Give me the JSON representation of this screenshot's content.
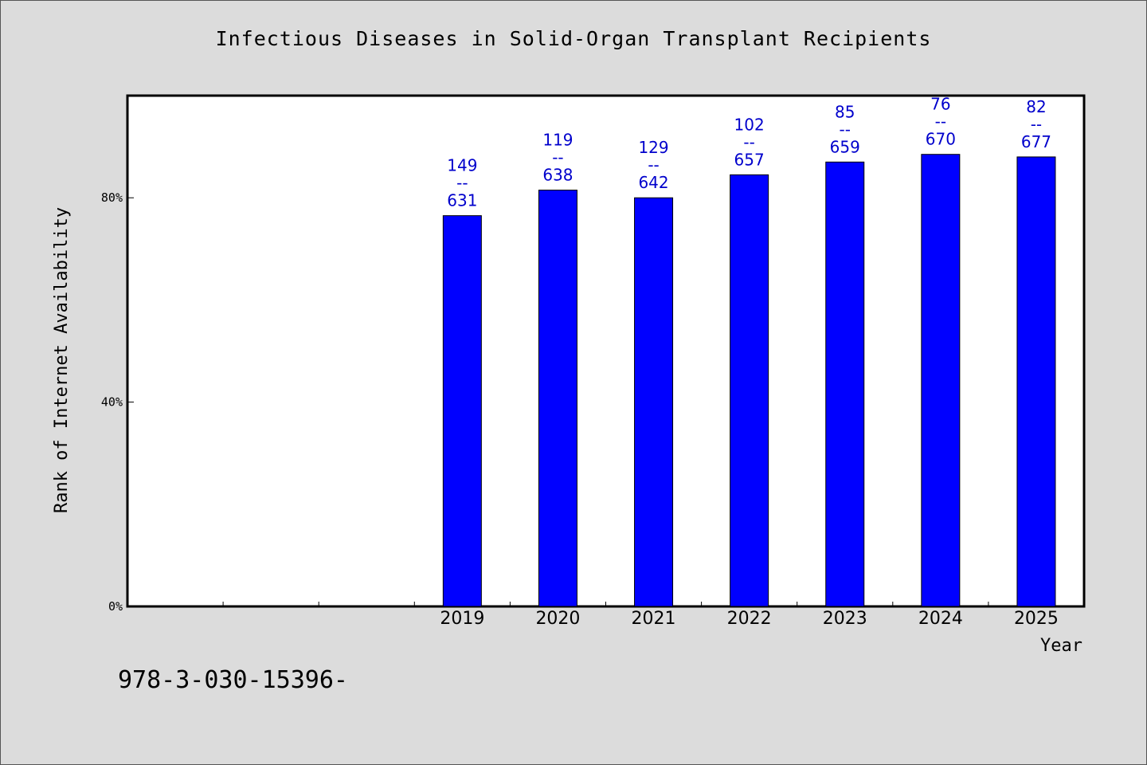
{
  "chart_data": {
    "type": "bar",
    "title": "Infectious Diseases in Solid-Organ Transplant Recipients",
    "xlabel": "Year",
    "ylabel": "Rank of Internet Availability",
    "categories": [
      "",
      "",
      "",
      "2019",
      "2020",
      "2021",
      "2022",
      "2023",
      "2024",
      "2025"
    ],
    "values": [
      null,
      null,
      null,
      76.5,
      81.5,
      80.0,
      84.5,
      87.0,
      88.5,
      88.0
    ],
    "data_labels": [
      null,
      null,
      null,
      [
        "149",
        "--",
        "631"
      ],
      [
        "119",
        "--",
        "638"
      ],
      [
        "129",
        "--",
        "642"
      ],
      [
        "102",
        "--",
        "657"
      ],
      [
        "85",
        "--",
        "659"
      ],
      [
        "76",
        "--",
        "670"
      ],
      [
        "82",
        "--",
        "677"
      ]
    ],
    "ylim": [
      0,
      100
    ],
    "yticks": [
      0,
      40,
      80
    ],
    "ytick_labels": [
      "0%",
      "40%",
      "80%"
    ],
    "grid": false,
    "bar_color": "#0000ff",
    "label_color": "#0000cc"
  },
  "footer": "978-3-030-15396-"
}
